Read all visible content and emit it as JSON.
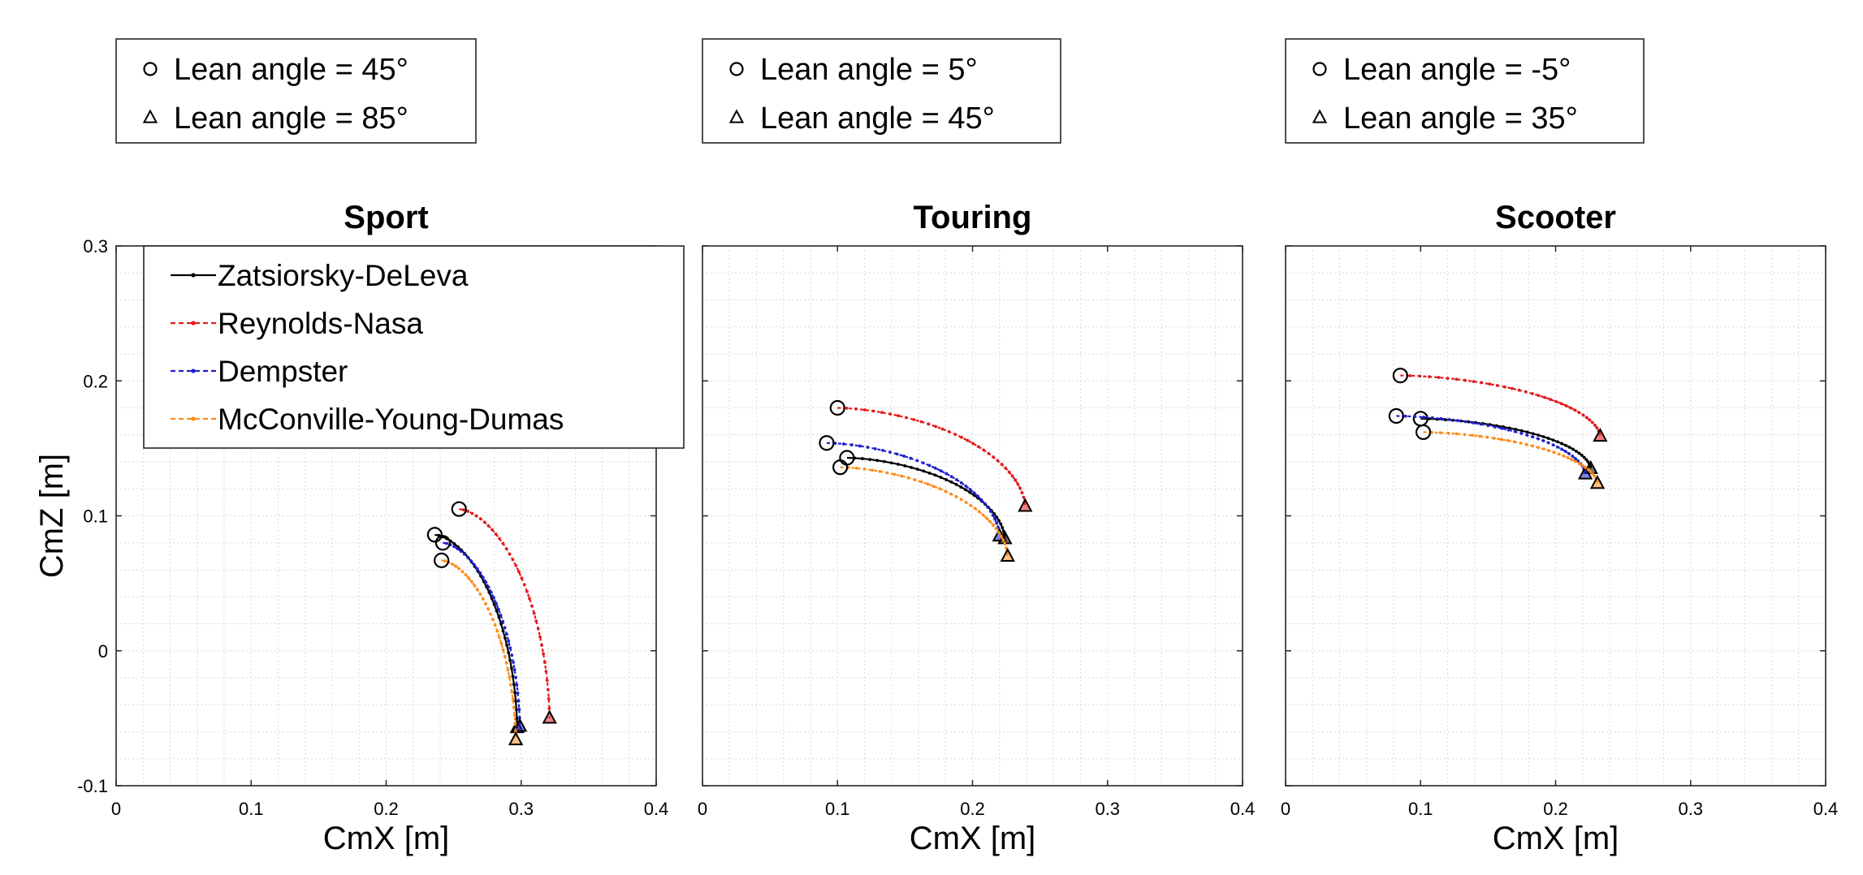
{
  "chart_data": [
    {
      "type": "line",
      "title": "Sport",
      "xlabel": "CmX [m]",
      "ylabel": "CmZ [m]",
      "xlim": [
        0,
        0.4
      ],
      "ylim": [
        -0.1,
        0.3
      ],
      "x_ticks": [
        "0",
        "0.1",
        "0.2",
        "0.3",
        "0.4"
      ],
      "y_ticks": [
        "-0.1",
        "0",
        "0.1",
        "0.2",
        "0.3"
      ],
      "grid": true,
      "marker_legend": [
        "Lean angle = 45°",
        "Lean angle = 85°"
      ],
      "series_legend_placement": "top-left",
      "series": [
        {
          "name": "Zatsiorsky-DeLeva",
          "color": "#000000",
          "start": [
            0.236,
            0.086
          ],
          "end": [
            0.297,
            -0.057
          ]
        },
        {
          "name": "Reynolds-Nasa",
          "color": "#e41a1c",
          "start": [
            0.254,
            0.105
          ],
          "end": [
            0.321,
            -0.05
          ]
        },
        {
          "name": "Dempster",
          "color": "#1f1fcf",
          "start": [
            0.242,
            0.08
          ],
          "end": [
            0.299,
            -0.056
          ]
        },
        {
          "name": "McConville-Young-Dumas",
          "color": "#ff8c1a",
          "start": [
            0.241,
            0.067
          ],
          "end": [
            0.296,
            -0.066
          ]
        }
      ]
    },
    {
      "type": "line",
      "title": "Touring",
      "xlabel": "CmX [m]",
      "ylabel": "",
      "xlim": [
        0,
        0.4
      ],
      "ylim": [
        -0.1,
        0.3
      ],
      "x_ticks": [
        "0",
        "0.1",
        "0.2",
        "0.3",
        "0.4"
      ],
      "grid": true,
      "marker_legend": [
        "Lean angle = 5°",
        "Lean angle = 45°"
      ],
      "series": [
        {
          "name": "Zatsiorsky-DeLeva",
          "color": "#000000",
          "start": [
            0.107,
            0.143
          ],
          "end": [
            0.224,
            0.083
          ]
        },
        {
          "name": "Reynolds-Nasa",
          "color": "#e41a1c",
          "start": [
            0.1,
            0.18
          ],
          "end": [
            0.239,
            0.107
          ]
        },
        {
          "name": "Dempster",
          "color": "#1f1fcf",
          "start": [
            0.092,
            0.154
          ],
          "end": [
            0.22,
            0.085
          ]
        },
        {
          "name": "McConville-Young-Dumas",
          "color": "#ff8c1a",
          "start": [
            0.102,
            0.136
          ],
          "end": [
            0.226,
            0.07
          ]
        }
      ]
    },
    {
      "type": "line",
      "title": "Scooter",
      "xlabel": "CmX [m]",
      "ylabel": "",
      "xlim": [
        0,
        0.4
      ],
      "ylim": [
        -0.1,
        0.3
      ],
      "x_ticks": [
        "0",
        "0.1",
        "0.2",
        "0.3",
        "0.4"
      ],
      "grid": true,
      "marker_legend": [
        "Lean angle = -5°",
        "Lean angle = 35°"
      ],
      "series": [
        {
          "name": "Zatsiorsky-DeLeva",
          "color": "#000000",
          "start": [
            0.1,
            0.172
          ],
          "end": [
            0.226,
            0.135
          ]
        },
        {
          "name": "Reynolds-Nasa",
          "color": "#e41a1c",
          "start": [
            0.085,
            0.204
          ],
          "end": [
            0.233,
            0.159
          ]
        },
        {
          "name": "Dempster",
          "color": "#1f1fcf",
          "start": [
            0.082,
            0.174
          ],
          "end": [
            0.222,
            0.131
          ]
        },
        {
          "name": "McConville-Young-Dumas",
          "color": "#ff8c1a",
          "start": [
            0.102,
            0.162
          ],
          "end": [
            0.231,
            0.124
          ]
        }
      ]
    }
  ]
}
